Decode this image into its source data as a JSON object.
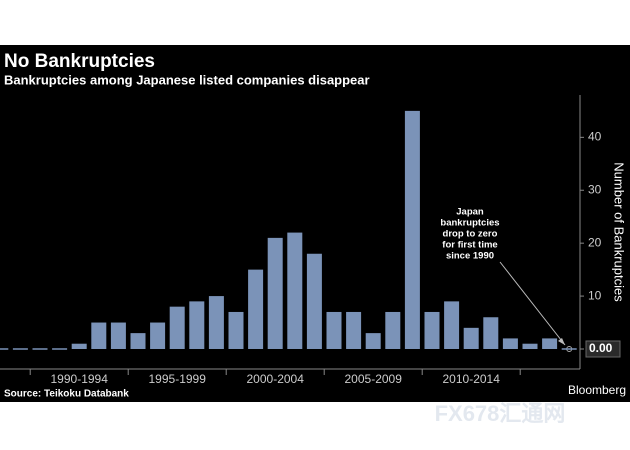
{
  "chart_data": {
    "type": "bar",
    "title": "No Bankruptcies",
    "subtitle": "Bankruptcies among Japanese listed companies disappear",
    "y_label": "Number of Bankruptcies",
    "source": "Source: Teikoku Databank",
    "brand": "Bloomberg",
    "watermark": "FX678汇通网",
    "annotation": [
      "Japan",
      "bankruptcies",
      "drop to zero",
      "for first time",
      "since 1990"
    ],
    "categories": [
      null,
      null,
      null,
      null,
      null,
      null,
      null,
      null,
      null,
      null,
      null,
      null,
      null,
      null,
      null,
      null,
      null,
      null,
      null,
      null,
      null,
      null,
      null,
      null,
      null,
      null,
      null,
      null,
      null,
      null
    ],
    "values": [
      0,
      0,
      0,
      0,
      1,
      5,
      5,
      3,
      5,
      8,
      9,
      10,
      7,
      15,
      21,
      22,
      18,
      7,
      7,
      3,
      7,
      45,
      7,
      9,
      4,
      6,
      2,
      1,
      2,
      0
    ],
    "x_group_labels": [
      "1990-1994",
      "1995-1999",
      "2000-2004",
      "2005-2009",
      "2010-2014"
    ],
    "color": "#7b93b8",
    "ylim": [
      0,
      48
    ],
    "yticks": [
      {
        "value": 0,
        "label": "0.00"
      },
      10,
      20,
      30,
      40
    ]
  }
}
